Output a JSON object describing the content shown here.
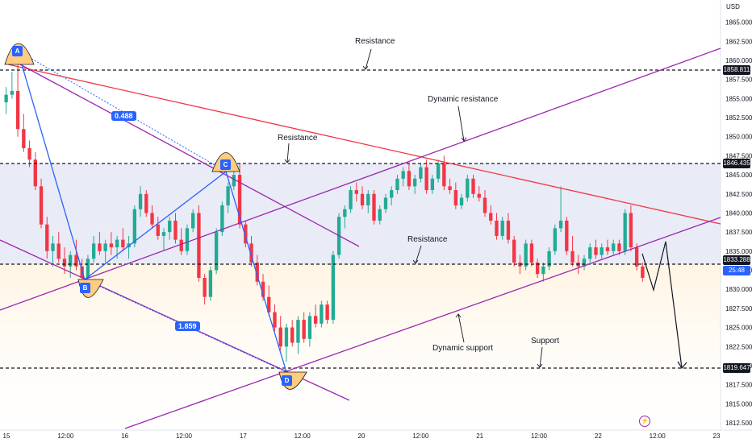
{
  "chart_data": {
    "type": "candlestick",
    "currency": "USD",
    "y_axis": {
      "min": 1811,
      "max": 1868,
      "ticks": [
        "1865.000",
        "1862.500",
        "1860.000",
        "1857.500",
        "1855.000",
        "1852.500",
        "1850.000",
        "1847.500",
        "1845.000",
        "1842.500",
        "1840.000",
        "1837.500",
        "1835.000",
        "1832.500",
        "1830.000",
        "1827.500",
        "1825.000",
        "1822.500",
        "1820.000",
        "1817.500",
        "1815.000",
        "1812.500"
      ]
    },
    "x_axis": {
      "ticks": [
        "15",
        "12:00",
        "16",
        "12:00",
        "17",
        "12:00",
        "20",
        "12:00",
        "21",
        "12:00",
        "22",
        "12:00",
        "23"
      ]
    },
    "price_labels": [
      {
        "value": "1858.811",
        "style": "dark"
      },
      {
        "value": "1846.435",
        "style": "dark"
      },
      {
        "value": "1833.288",
        "style": "dark"
      },
      {
        "value": "1819.647",
        "style": "dark"
      },
      {
        "value": "25:48",
        "style": "blue"
      }
    ],
    "annotations": [
      "Resistance",
      "Dynamic resistance",
      "Resistance",
      "Resistance",
      "Dynamic support",
      "Support"
    ],
    "pattern_points": [
      "A",
      "B",
      "C",
      "D"
    ],
    "ratios": [
      "0.488",
      "1.859"
    ],
    "candles": [
      [
        1854.5,
        1856.5,
        1853.0,
        1855.5
      ],
      [
        1855.5,
        1858.5,
        1855.0,
        1856.0
      ],
      [
        1856.0,
        1859.5,
        1850.0,
        1851.0
      ],
      [
        1851.0,
        1853.0,
        1848.0,
        1848.5
      ],
      [
        1848.5,
        1849.5,
        1846.0,
        1847.0
      ],
      [
        1847.0,
        1848.0,
        1843.0,
        1843.5
      ],
      [
        1843.5,
        1844.5,
        1838.0,
        1838.5
      ],
      [
        1838.5,
        1839.5,
        1834.0,
        1835.0
      ],
      [
        1835.0,
        1837.0,
        1833.0,
        1836.0
      ],
      [
        1836.0,
        1837.5,
        1833.5,
        1834.0
      ],
      [
        1834.0,
        1835.5,
        1832.0,
        1833.0
      ],
      [
        1833.0,
        1835.0,
        1831.5,
        1834.5
      ],
      [
        1834.5,
        1836.5,
        1832.5,
        1833.0
      ],
      [
        1833.0,
        1834.0,
        1831.0,
        1831.5
      ],
      [
        1831.5,
        1834.5,
        1830.5,
        1834.0
      ],
      [
        1834.0,
        1837.0,
        1833.5,
        1836.0
      ],
      [
        1836.0,
        1837.5,
        1834.5,
        1835.0
      ],
      [
        1835.0,
        1836.5,
        1833.5,
        1836.0
      ],
      [
        1836.0,
        1837.5,
        1834.5,
        1835.5
      ],
      [
        1835.5,
        1837.0,
        1834.0,
        1836.5
      ],
      [
        1836.5,
        1838.0,
        1835.0,
        1835.5
      ],
      [
        1835.5,
        1837.0,
        1834.0,
        1836.0
      ],
      [
        1836.0,
        1841.0,
        1835.5,
        1840.5
      ],
      [
        1840.5,
        1843.5,
        1839.5,
        1842.5
      ],
      [
        1842.5,
        1843.0,
        1839.5,
        1840.0
      ],
      [
        1840.0,
        1841.0,
        1838.0,
        1838.5
      ],
      [
        1838.5,
        1839.5,
        1836.5,
        1837.0
      ],
      [
        1837.0,
        1838.0,
        1835.0,
        1837.5
      ],
      [
        1837.5,
        1839.5,
        1836.5,
        1839.0
      ],
      [
        1839.0,
        1840.0,
        1836.0,
        1836.5
      ],
      [
        1836.5,
        1838.0,
        1834.5,
        1835.0
      ],
      [
        1835.0,
        1838.5,
        1834.5,
        1838.0
      ],
      [
        1838.0,
        1840.5,
        1837.5,
        1840.0
      ],
      [
        1840.0,
        1841.0,
        1831.0,
        1831.5
      ],
      [
        1831.5,
        1832.0,
        1828.0,
        1829.0
      ],
      [
        1829.0,
        1833.0,
        1828.5,
        1832.5
      ],
      [
        1832.5,
        1838.0,
        1832.0,
        1837.5
      ],
      [
        1837.5,
        1841.5,
        1837.0,
        1841.0
      ],
      [
        1841.0,
        1844.0,
        1840.0,
        1843.5
      ],
      [
        1843.5,
        1845.5,
        1843.0,
        1845.0
      ],
      [
        1845.0,
        1846.5,
        1838.0,
        1838.5
      ],
      [
        1838.5,
        1839.0,
        1835.5,
        1836.0
      ],
      [
        1836.0,
        1837.0,
        1833.0,
        1833.5
      ],
      [
        1833.5,
        1834.5,
        1830.5,
        1831.0
      ],
      [
        1831.0,
        1832.0,
        1828.5,
        1829.0
      ],
      [
        1829.0,
        1830.5,
        1826.5,
        1827.0
      ],
      [
        1827.0,
        1828.0,
        1824.5,
        1825.0
      ],
      [
        1825.0,
        1826.5,
        1822.0,
        1822.5
      ],
      [
        1822.5,
        1825.5,
        1820.5,
        1825.0
      ],
      [
        1825.0,
        1826.0,
        1822.5,
        1823.0
      ],
      [
        1823.0,
        1826.5,
        1821.5,
        1826.0
      ],
      [
        1826.0,
        1827.0,
        1823.0,
        1823.5
      ],
      [
        1823.5,
        1827.0,
        1822.5,
        1826.5
      ],
      [
        1826.5,
        1828.0,
        1825.0,
        1825.5
      ],
      [
        1825.5,
        1828.5,
        1825.0,
        1828.0
      ],
      [
        1828.0,
        1828.5,
        1825.5,
        1826.0
      ],
      [
        1826.0,
        1835.0,
        1825.5,
        1834.5
      ],
      [
        1834.5,
        1840.0,
        1834.0,
        1839.5
      ],
      [
        1839.5,
        1841.0,
        1838.0,
        1840.5
      ],
      [
        1840.5,
        1843.5,
        1840.0,
        1843.0
      ],
      [
        1843.0,
        1844.0,
        1841.5,
        1842.5
      ],
      [
        1842.5,
        1843.5,
        1840.5,
        1841.0
      ],
      [
        1841.0,
        1843.0,
        1840.0,
        1842.5
      ],
      [
        1842.5,
        1843.0,
        1838.5,
        1839.0
      ],
      [
        1839.0,
        1841.0,
        1838.5,
        1840.5
      ],
      [
        1840.5,
        1842.5,
        1840.0,
        1842.0
      ],
      [
        1842.0,
        1843.5,
        1841.0,
        1843.0
      ],
      [
        1843.0,
        1845.0,
        1842.5,
        1844.5
      ],
      [
        1844.5,
        1846.0,
        1843.5,
        1845.5
      ],
      [
        1845.5,
        1846.5,
        1843.0,
        1843.5
      ],
      [
        1843.5,
        1845.0,
        1842.5,
        1844.5
      ],
      [
        1844.5,
        1846.5,
        1844.0,
        1846.0
      ],
      [
        1846.0,
        1847.0,
        1842.5,
        1843.0
      ],
      [
        1843.0,
        1845.0,
        1842.5,
        1844.5
      ],
      [
        1844.5,
        1847.0,
        1844.0,
        1846.5
      ],
      [
        1846.5,
        1847.5,
        1843.0,
        1843.5
      ],
      [
        1843.5,
        1844.5,
        1842.5,
        1843.0
      ],
      [
        1843.0,
        1844.0,
        1840.5,
        1841.0
      ],
      [
        1841.0,
        1842.5,
        1840.5,
        1842.0
      ],
      [
        1842.0,
        1845.0,
        1841.5,
        1844.5
      ],
      [
        1844.5,
        1845.0,
        1842.0,
        1842.5
      ],
      [
        1842.5,
        1843.5,
        1841.5,
        1842.0
      ],
      [
        1842.0,
        1843.0,
        1839.5,
        1840.0
      ],
      [
        1840.0,
        1841.0,
        1838.5,
        1839.0
      ],
      [
        1839.0,
        1840.0,
        1836.5,
        1837.0
      ],
      [
        1837.0,
        1839.5,
        1836.5,
        1839.0
      ],
      [
        1839.0,
        1840.0,
        1836.0,
        1836.5
      ],
      [
        1836.5,
        1837.0,
        1833.0,
        1833.5
      ],
      [
        1833.5,
        1834.5,
        1832.0,
        1833.0
      ],
      [
        1833.0,
        1836.5,
        1832.5,
        1836.0
      ],
      [
        1836.0,
        1836.5,
        1833.0,
        1833.5
      ],
      [
        1833.5,
        1834.0,
        1831.5,
        1832.0
      ],
      [
        1832.0,
        1833.5,
        1831.0,
        1833.0
      ],
      [
        1833.0,
        1835.5,
        1832.5,
        1835.0
      ],
      [
        1835.0,
        1838.5,
        1834.5,
        1838.0
      ],
      [
        1838.0,
        1843.5,
        1837.5,
        1839.0
      ],
      [
        1839.0,
        1839.5,
        1834.5,
        1835.0
      ],
      [
        1835.0,
        1837.0,
        1833.0,
        1833.5
      ],
      [
        1833.5,
        1834.5,
        1832.0,
        1833.0
      ],
      [
        1833.0,
        1834.5,
        1832.5,
        1834.0
      ],
      [
        1834.0,
        1836.0,
        1833.5,
        1835.5
      ],
      [
        1835.5,
        1836.5,
        1834.0,
        1834.5
      ],
      [
        1834.5,
        1836.0,
        1834.0,
        1835.5
      ],
      [
        1835.5,
        1836.5,
        1834.5,
        1835.0
      ],
      [
        1835.0,
        1836.5,
        1834.5,
        1836.0
      ],
      [
        1836.0,
        1836.5,
        1834.5,
        1835.0
      ],
      [
        1835.0,
        1840.5,
        1834.5,
        1840.0
      ],
      [
        1840.0,
        1841.0,
        1835.0,
        1835.5
      ],
      [
        1835.5,
        1836.0,
        1832.5,
        1833.0
      ],
      [
        1833.0,
        1833.5,
        1831.0,
        1831.5
      ]
    ]
  }
}
